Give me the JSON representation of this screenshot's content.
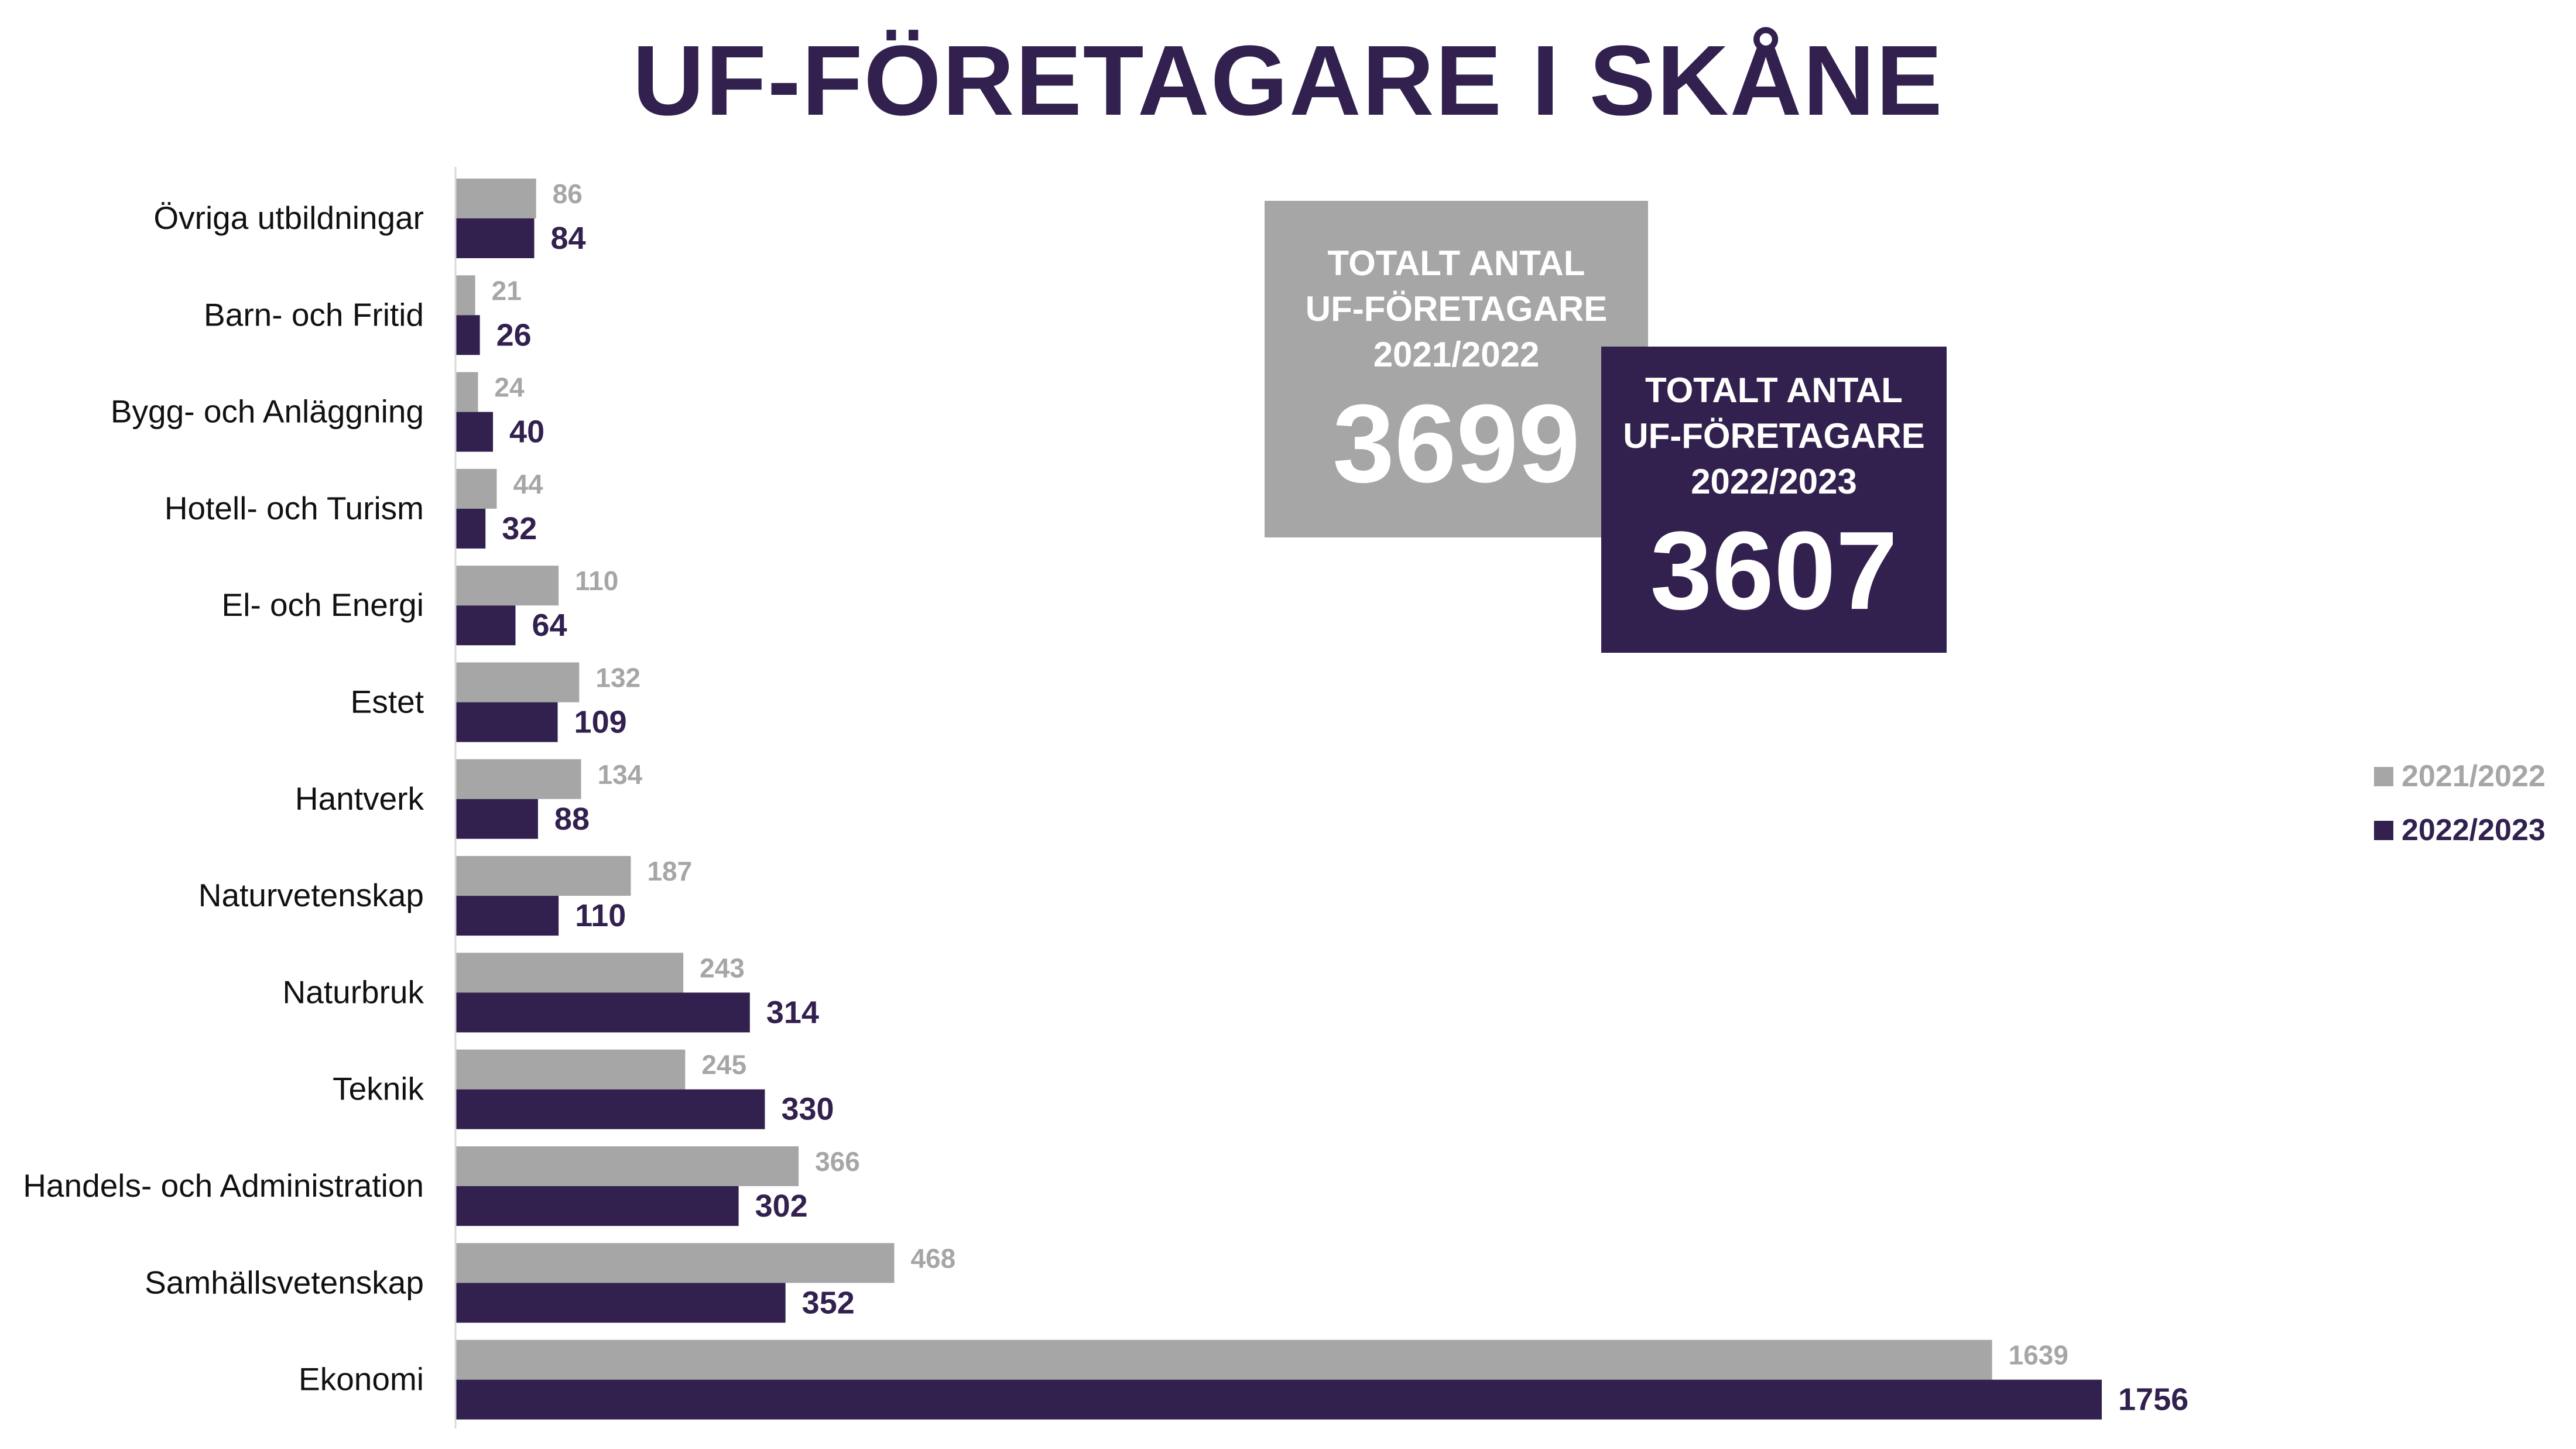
{
  "title": "UF-FÖRETAGARE I SKÅNE",
  "colors": {
    "s2122": "#a6a6a6",
    "s2223": "#32214f",
    "axis": "#d9d9d9"
  },
  "totals": [
    {
      "label": "TOTALT ANTAL\nUF-FÖRETAGARE\n2021/2022",
      "value": "3699"
    },
    {
      "label": "TOTALT ANTAL\nUF-FÖRETAGARE\n2022/2023",
      "value": "3607"
    }
  ],
  "chart_data": {
    "type": "bar",
    "orientation": "horizontal",
    "title": "UF-FÖRETAGARE I SKÅNE",
    "categories": [
      "Övriga utbildningar",
      "Barn- och Fritid",
      "Bygg- och Anläggning",
      "Hotell- och Turism",
      "El- och Energi",
      "Estet",
      "Hantverk",
      "Naturvetenskap",
      "Naturbruk",
      "Teknik",
      "Handels- och Administration",
      "Samhällsvetenskap",
      "Ekonomi"
    ],
    "series": [
      {
        "name": "2021/2022",
        "values": [
          86,
          21,
          24,
          44,
          110,
          132,
          134,
          187,
          243,
          245,
          366,
          468,
          1639
        ]
      },
      {
        "name": "2022/2023",
        "values": [
          84,
          26,
          40,
          32,
          64,
          109,
          88,
          110,
          314,
          330,
          302,
          352,
          1756
        ]
      }
    ],
    "legend_position": "right",
    "grid": false,
    "xlim": [
      0,
      1756
    ]
  }
}
